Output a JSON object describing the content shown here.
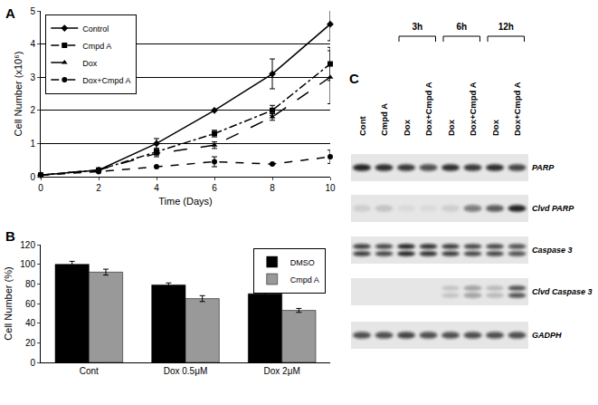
{
  "chart_data": [
    {
      "panel": "A",
      "type": "line",
      "x": [
        0,
        2,
        4,
        6,
        8,
        10
      ],
      "xlim": [
        0,
        10
      ],
      "xticks": [
        0,
        2,
        4,
        6,
        8,
        10
      ],
      "ylim": [
        0,
        5
      ],
      "yticks": [
        0,
        1,
        2,
        3,
        4,
        5
      ],
      "x_label": "Time (Days)",
      "y_label": "Cell Number (x10⁶)",
      "grid": true,
      "legend": "top-left",
      "series": [
        {
          "name": "Control",
          "color": "#000000",
          "marker": "diamond",
          "line_style": "solid",
          "values": [
            0.05,
            0.2,
            1.0,
            2.0,
            3.1,
            4.6
          ],
          "error": [
            null,
            null,
            0.15,
            null,
            0.45,
            0.5
          ]
        },
        {
          "name": "Cmpd A",
          "color": "#000000",
          "marker": "square",
          "line_style": "dashdot",
          "values": [
            0.05,
            0.2,
            0.75,
            1.3,
            2.0,
            3.4
          ],
          "error": [
            null,
            null,
            0.1,
            0.1,
            0.15,
            0.5
          ]
        },
        {
          "name": "Dox",
          "color": "#000000",
          "marker": "triangle",
          "line_style": "longdash",
          "values": [
            0.05,
            0.2,
            0.7,
            0.95,
            1.8,
            3.0
          ],
          "error": [
            null,
            null,
            0.1,
            0.1,
            0.1,
            0.8
          ]
        },
        {
          "name": "Dox+Cmpd A",
          "color": "#000000",
          "marker": "circle",
          "line_style": "dash",
          "values": [
            0.05,
            0.15,
            0.3,
            0.45,
            0.38,
            0.6
          ],
          "error": [
            null,
            null,
            null,
            0.15,
            null,
            0.2
          ]
        }
      ]
    },
    {
      "panel": "B",
      "type": "bar",
      "categories": [
        "Cont",
        "Dox 0.5μM",
        "Dox 2μM"
      ],
      "ylim": [
        0,
        120
      ],
      "yticks": [
        0,
        20,
        40,
        60,
        80,
        100,
        120
      ],
      "y_label": "Cell Number (%)",
      "grid": false,
      "legend": "top-right",
      "series": [
        {
          "name": "DMSO",
          "color": "#000000",
          "values": [
            100,
            79,
            70
          ],
          "error": [
            3,
            2,
            2
          ]
        },
        {
          "name": "Cmpd A",
          "color": "#999999",
          "values": [
            92,
            65,
            53
          ],
          "error": [
            3,
            3,
            2
          ]
        }
      ]
    }
  ],
  "blot": {
    "panel": "C",
    "lanes": [
      "Cont",
      "Cmpd A",
      "Dox",
      "Dox+Cmpd A",
      "Dox",
      "Dox+Cmpd A",
      "Dox",
      "Dox+Cmpd A"
    ],
    "time_points": [
      {
        "label": "3h",
        "lanes": [
          2,
          3
        ]
      },
      {
        "label": "6h",
        "lanes": [
          4,
          5
        ]
      },
      {
        "label": "12h",
        "lanes": [
          6,
          7
        ]
      }
    ],
    "rows": [
      {
        "label": "PARP",
        "doublet": false,
        "intensity": [
          0.9,
          0.85,
          0.8,
          0.7,
          0.85,
          0.8,
          0.85,
          0.75
        ]
      },
      {
        "label": "Clvd PARP",
        "doublet": false,
        "intensity": [
          0.1,
          0.15,
          0.05,
          0.05,
          0.1,
          0.5,
          0.65,
          0.9
        ]
      },
      {
        "label": "Caspase 3",
        "doublet": true,
        "intensity": [
          0.8,
          0.75,
          0.9,
          0.85,
          0.8,
          0.75,
          0.75,
          0.7
        ]
      },
      {
        "label": "Clvd Caspase 3",
        "doublet": true,
        "intensity": [
          0,
          0,
          0,
          0,
          0.15,
          0.35,
          0.2,
          0.7
        ]
      },
      {
        "label": "GADPH",
        "doublet": false,
        "intensity": [
          0.7,
          0.7,
          0.75,
          0.7,
          0.7,
          0.7,
          0.7,
          0.7
        ]
      }
    ]
  }
}
